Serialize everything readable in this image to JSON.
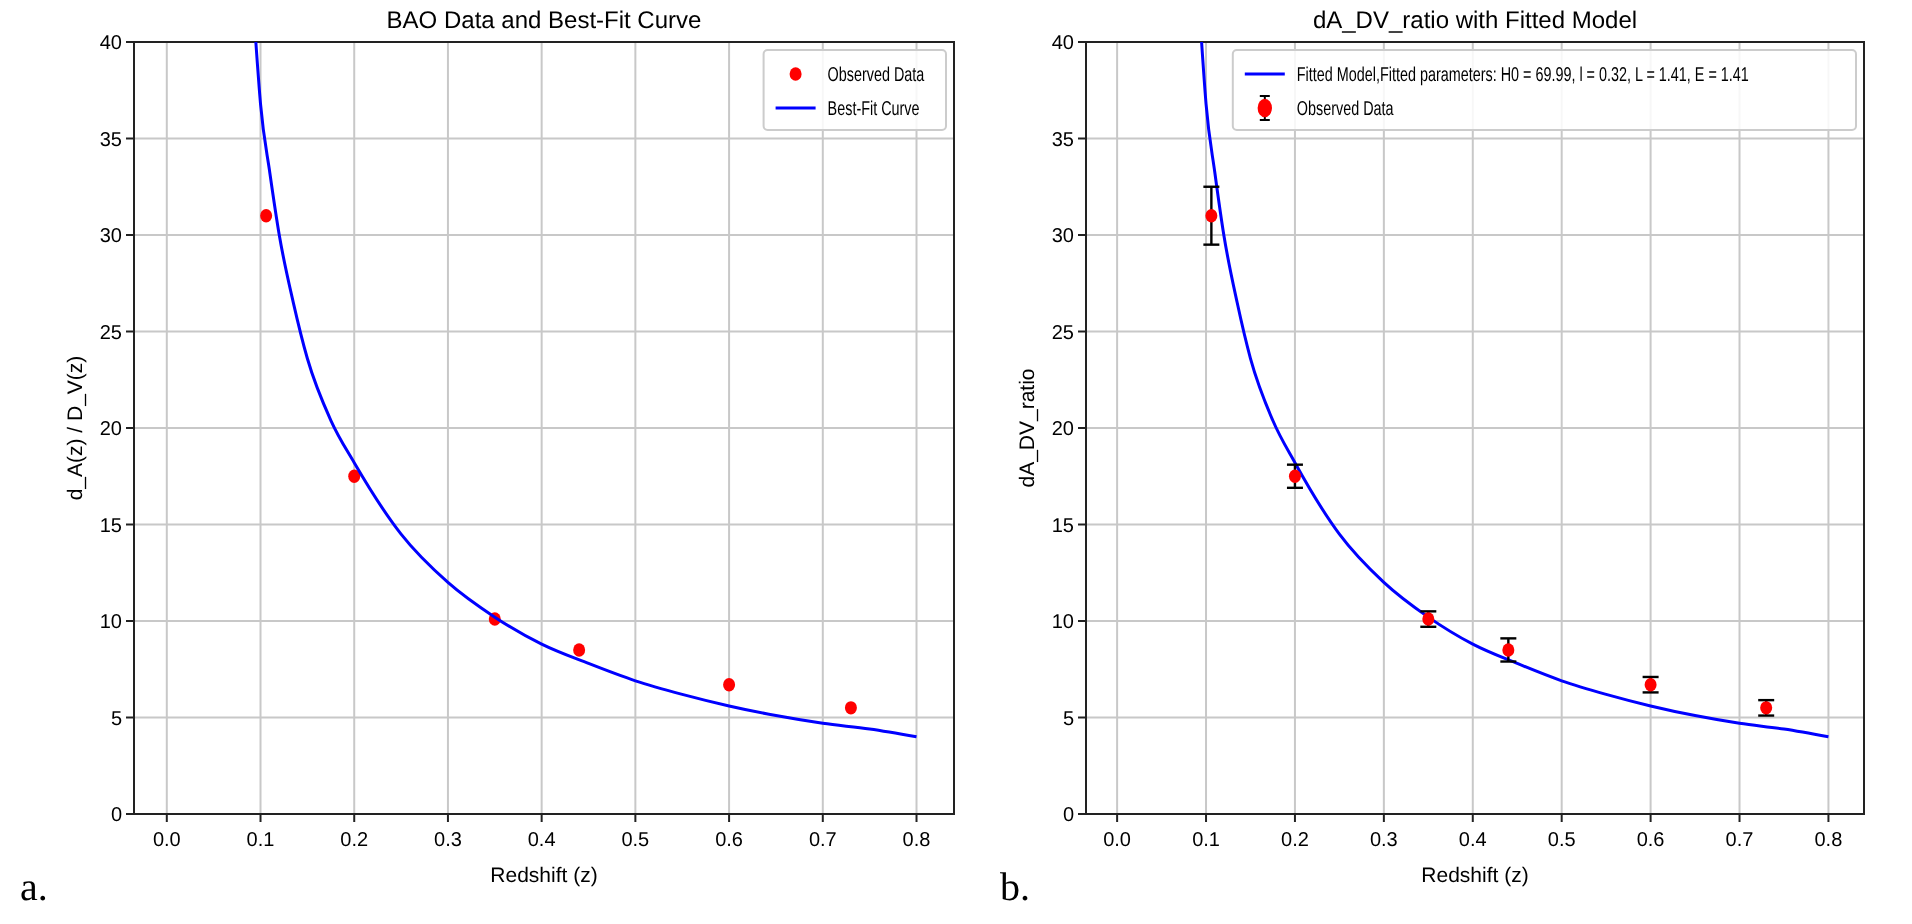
{
  "chart_data": [
    {
      "type": "scatter",
      "title": "BAO Data and Best-Fit Curve",
      "xlabel": "Redshift (z)",
      "ylabel": "d_A(z) / D_V(z)",
      "xlim": [
        -0.035,
        0.84
      ],
      "ylim": [
        0,
        40
      ],
      "xticks": [
        {
          "value": 0,
          "label": "0.0"
        },
        0.1,
        0.2,
        0.3,
        0.4,
        0.5,
        0.6,
        0.7,
        0.8
      ],
      "yticks": [
        0,
        5,
        10,
        15,
        20,
        25,
        30,
        35,
        40
      ],
      "grid": true,
      "legend": "top right",
      "annotations": [
        "a."
      ],
      "series": [
        {
          "name": "Observed Data",
          "marker": "circle",
          "color": "#ff0000",
          "x": [
            0.106,
            0.2,
            0.35,
            0.44,
            0.6,
            0.73
          ],
          "values": [
            31.0,
            17.5,
            10.1,
            8.5,
            6.7,
            5.5
          ]
        },
        {
          "name": "Best-Fit Curve",
          "type": "line",
          "marker": "none",
          "line_style": "solid",
          "color": "#0000ff",
          "x": [
            0.095,
            0.1,
            0.11,
            0.12,
            0.135,
            0.15,
            0.175,
            0.2,
            0.25,
            0.3,
            0.35,
            0.4,
            0.45,
            0.5,
            0.55,
            0.6,
            0.65,
            0.7,
            0.75,
            0.8
          ],
          "values": [
            40,
            36.8,
            33.2,
            30,
            26.5,
            23.6,
            20.4,
            18.2,
            14.5,
            12,
            10.2,
            8.8,
            7.8,
            6.9,
            6.2,
            5.6,
            5.1,
            4.7,
            4.4,
            4.0
          ]
        }
      ]
    },
    {
      "type": "scatter",
      "title": "dA_DV_ratio with Fitted Model",
      "xlabel": "Redshift (z)",
      "ylabel": "dA_DV_ratio",
      "xlim": [
        -0.035,
        0.84
      ],
      "ylim": [
        0,
        40
      ],
      "xticks": [
        {
          "value": 0,
          "label": "0.0"
        },
        0.1,
        0.2,
        0.3,
        0.4,
        0.5,
        0.6,
        0.7,
        0.8
      ],
      "yticks": [
        0,
        5,
        10,
        15,
        20,
        25,
        30,
        35,
        40
      ],
      "grid": true,
      "legend": "top right",
      "annotations": [
        "b."
      ],
      "series": [
        {
          "name": "Fitted Model,Fitted parameters: H0 = 69.99, l = 0.32, L = 1.41, E = 1.41",
          "type": "line",
          "marker": "none",
          "line_style": "solid",
          "color": "#0000ff",
          "x": [
            0.095,
            0.1,
            0.11,
            0.12,
            0.135,
            0.15,
            0.175,
            0.2,
            0.25,
            0.3,
            0.35,
            0.4,
            0.45,
            0.5,
            0.55,
            0.6,
            0.65,
            0.7,
            0.75,
            0.8
          ],
          "values": [
            40,
            36.8,
            33.2,
            30,
            26.5,
            23.6,
            20.4,
            18.2,
            14.5,
            12,
            10.2,
            8.8,
            7.8,
            6.9,
            6.2,
            5.6,
            5.1,
            4.7,
            4.4,
            4.0
          ]
        },
        {
          "name": "Observed Data",
          "marker": "circle",
          "color": "#ff0000",
          "x": [
            0.106,
            0.2,
            0.35,
            0.44,
            0.6,
            0.73
          ],
          "values": [
            31.0,
            17.5,
            10.1,
            8.5,
            6.7,
            5.5
          ],
          "errors": [
            1.5,
            0.6,
            0.4,
            0.6,
            0.4,
            0.4
          ]
        }
      ]
    }
  ]
}
